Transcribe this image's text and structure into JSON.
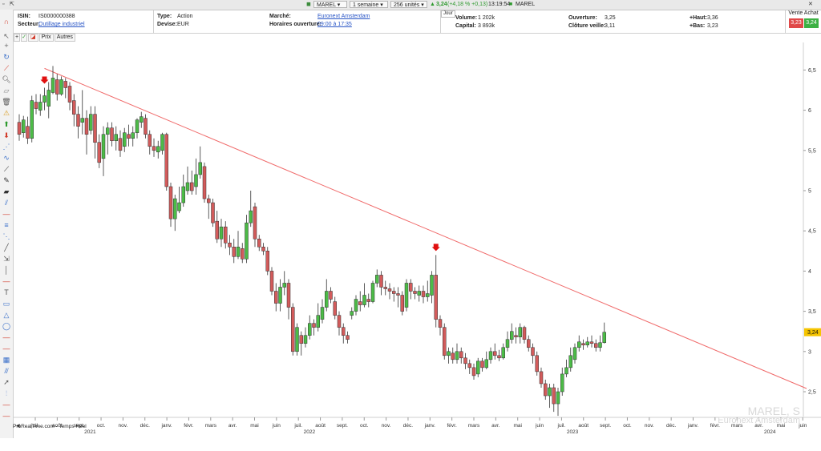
{
  "toolbar_top": {
    "symbol": "MAREL",
    "period": "1 semaine",
    "units": "256 unités",
    "last": "3,24",
    "change": "(+4,18 % +0,13)",
    "time": "13:19:54",
    "name": "MAREL"
  },
  "info": {
    "isin_label": "ISIN:",
    "isin": "IS0000000388",
    "sector_label": "Secteur:",
    "sector": "Outillage industriel",
    "type_label": "Type:",
    "type": "Action",
    "currency_label": "Devise:",
    "currency": "EUR",
    "market_label": "Marché:",
    "market": "Euronext Amsterdam",
    "hours_label": "Horaires ouverture:",
    "hours": "09:00 à 17:35",
    "day_tab": "Jour",
    "volume_label": "Volume:",
    "volume": "1 202k",
    "capital_label": "Capital:",
    "capital": "3 893k",
    "open_label": "Ouverture:",
    "open": "3,25",
    "prevclose_label": "Clôture veille:",
    "prevclose": "3,11",
    "high_label": "+Haut:",
    "high": "3,36",
    "low_label": "+Bas:",
    "low": "3,23",
    "sell_buy": "Vente Achat",
    "sell": "3,23",
    "buy": "3,24"
  },
  "chart_tabs": {
    "prices": "Prix",
    "others": "Autres"
  },
  "footer": {
    "source": "ProRealTime.com - Temps Réel",
    "watermark_name": "MAREL, S",
    "watermark_market": "Euronext Amsterdam"
  },
  "colors": {
    "up": "#4cbb47",
    "down": "#d25b5b",
    "trendline": "#f06a6a",
    "arrow": "#e01010",
    "price_tag": "#f5c400"
  },
  "chart_data": {
    "type": "candlestick",
    "ylim": [
      2.2,
      6.7
    ],
    "yticks": [
      "2,5",
      "3",
      "3,5",
      "4",
      "4,5",
      "5",
      "5,5",
      "6",
      "6,5"
    ],
    "ytick_values": [
      2.5,
      3.0,
      3.5,
      4.0,
      4.5,
      5.0,
      5.5,
      6.0,
      6.5
    ],
    "last_price_label": "3,24",
    "last_price": 3.24,
    "xticks": [
      "juil.",
      "août",
      "sept.",
      "oct.",
      "nov.",
      "déc.",
      "janv.",
      "févr.",
      "mars",
      "avr.",
      "mai",
      "juin",
      "juil.",
      "août",
      "sept.",
      "oct.",
      "nov.",
      "déc.",
      "janv.",
      "févr.",
      "mars",
      "avr.",
      "mai",
      "juin",
      "juil.",
      "août",
      "sept.",
      "oct.",
      "nov.",
      "déc.",
      "janv.",
      "févr.",
      "mars",
      "avr.",
      "mai",
      "juin"
    ],
    "years": [
      {
        "label": "2021",
        "after_tick": 2
      },
      {
        "label": "2022",
        "after_tick": 12
      },
      {
        "label": "2023",
        "after_tick": 24
      },
      {
        "label": "2024",
        "after_tick": 33
      }
    ],
    "trendline": {
      "from": [
        6,
        6.52
      ],
      "to": [
        165,
        2.55
      ]
    },
    "arrows": [
      6,
      99
    ],
    "candles": [
      [
        5.85,
        5.7,
        5.95,
        5.62
      ],
      [
        5.72,
        5.88,
        5.93,
        5.66
      ],
      [
        5.8,
        5.65,
        5.92,
        5.58
      ],
      [
        5.65,
        6.12,
        6.18,
        5.6
      ],
      [
        6.1,
        6.02,
        6.2,
        5.95
      ],
      [
        6.0,
        6.1,
        6.2,
        5.93
      ],
      [
        6.1,
        6.18,
        6.28,
        6.0
      ],
      [
        6.05,
        6.25,
        6.35,
        5.9
      ],
      [
        6.22,
        6.4,
        6.55,
        6.2
      ],
      [
        6.38,
        6.2,
        6.45,
        6.12
      ],
      [
        6.2,
        6.38,
        6.42,
        6.18
      ],
      [
        6.36,
        6.28,
        6.4,
        6.15
      ],
      [
        6.3,
        6.1,
        6.35,
        6.0
      ],
      [
        6.12,
        5.95,
        6.2,
        5.8
      ],
      [
        5.95,
        5.8,
        6.05,
        5.65
      ],
      [
        5.85,
        5.9,
        6.25,
        5.7
      ],
      [
        5.9,
        5.7,
        6.0,
        5.45
      ],
      [
        5.75,
        5.95,
        6.05,
        5.7
      ],
      [
        5.95,
        5.6,
        6.05,
        5.4
      ],
      [
        5.6,
        5.35,
        5.7,
        5.28
      ],
      [
        5.4,
        5.7,
        5.8,
        5.18
      ],
      [
        5.7,
        5.78,
        5.85,
        5.45
      ],
      [
        5.78,
        5.62,
        5.85,
        5.55
      ],
      [
        5.62,
        5.7,
        5.8,
        5.5
      ],
      [
        5.65,
        5.5,
        5.75,
        5.42
      ],
      [
        5.55,
        5.72,
        5.78,
        5.48
      ],
      [
        5.7,
        5.65,
        5.82,
        5.55
      ],
      [
        5.65,
        5.72,
        5.8,
        5.55
      ],
      [
        5.72,
        5.88,
        5.9,
        5.65
      ],
      [
        5.85,
        5.92,
        5.98,
        5.78
      ],
      [
        5.9,
        5.7,
        5.95,
        5.65
      ],
      [
        5.7,
        5.55,
        5.75,
        5.45
      ],
      [
        5.55,
        5.5,
        5.65,
        5.42
      ],
      [
        5.48,
        5.55,
        5.62,
        5.4
      ],
      [
        5.5,
        5.7,
        5.72,
        5.45
      ],
      [
        5.7,
        5.05,
        5.72,
        5.0
      ],
      [
        5.05,
        4.65,
        5.1,
        4.55
      ],
      [
        4.65,
        4.9,
        4.95,
        4.5
      ],
      [
        4.75,
        4.85,
        5.05,
        4.72
      ],
      [
        4.85,
        5.05,
        5.2,
        4.8
      ],
      [
        5.0,
        5.1,
        5.3,
        4.95
      ],
      [
        5.1,
        5.0,
        5.25,
        4.95
      ],
      [
        5.05,
        5.2,
        5.4,
        4.95
      ],
      [
        5.2,
        5.35,
        5.55,
        5.15
      ],
      [
        5.3,
        4.9,
        5.35,
        4.85
      ],
      [
        4.9,
        4.85,
        4.95,
        4.65
      ],
      [
        4.85,
        4.6,
        4.9,
        4.55
      ],
      [
        4.62,
        4.4,
        4.75,
        4.35
      ],
      [
        4.4,
        4.55,
        4.65,
        4.3
      ],
      [
        4.55,
        4.35,
        4.62,
        4.28
      ],
      [
        4.35,
        4.3,
        4.45,
        4.2
      ],
      [
        4.3,
        4.18,
        4.4,
        4.1
      ],
      [
        4.18,
        4.3,
        4.5,
        4.15
      ],
      [
        4.28,
        4.15,
        4.35,
        4.1
      ],
      [
        4.15,
        4.6,
        4.7,
        4.1
      ],
      [
        4.6,
        4.75,
        5.0,
        4.55
      ],
      [
        4.8,
        4.4,
        4.85,
        4.3
      ],
      [
        4.4,
        4.3,
        4.45,
        4.25
      ],
      [
        4.3,
        4.25,
        4.35,
        4.2
      ],
      [
        4.25,
        4.0,
        4.3,
        3.95
      ],
      [
        4.0,
        3.75,
        4.05,
        3.7
      ],
      [
        3.75,
        3.6,
        3.85,
        3.5
      ],
      [
        3.6,
        3.8,
        3.9,
        3.5
      ],
      [
        3.8,
        3.85,
        4.0,
        3.7
      ],
      [
        3.85,
        3.55,
        3.9,
        3.4
      ],
      [
        3.55,
        3.0,
        3.6,
        2.95
      ],
      [
        3.0,
        3.3,
        3.35,
        2.95
      ],
      [
        3.2,
        3.1,
        3.25,
        2.95
      ],
      [
        3.1,
        3.2,
        3.3,
        3.05
      ],
      [
        3.2,
        3.35,
        3.45,
        3.15
      ],
      [
        3.35,
        3.3,
        3.4,
        3.2
      ],
      [
        3.3,
        3.45,
        3.6,
        3.25
      ],
      [
        3.4,
        3.55,
        3.65,
        3.35
      ],
      [
        3.55,
        3.75,
        3.9,
        3.5
      ],
      [
        3.75,
        3.65,
        3.8,
        3.6
      ],
      [
        3.62,
        3.45,
        3.68,
        3.4
      ],
      [
        3.45,
        3.3,
        3.5,
        3.2
      ],
      [
        3.3,
        3.2,
        3.35,
        3.1
      ],
      [
        3.2,
        3.15,
        3.25,
        3.1
      ],
      [
        3.45,
        3.5,
        3.55,
        3.4
      ],
      [
        3.5,
        3.65,
        3.7,
        3.45
      ],
      [
        3.62,
        3.58,
        3.75,
        3.5
      ],
      [
        3.58,
        3.7,
        3.85,
        3.55
      ],
      [
        3.65,
        3.62,
        3.72,
        3.55
      ],
      [
        3.62,
        3.85,
        3.88,
        3.6
      ],
      [
        3.85,
        3.95,
        4.02,
        3.8
      ],
      [
        3.95,
        3.8,
        4.0,
        3.7
      ],
      [
        3.8,
        3.78,
        3.88,
        3.7
      ],
      [
        3.78,
        3.75,
        3.85,
        3.65
      ],
      [
        3.75,
        3.72,
        3.8,
        3.62
      ],
      [
        3.72,
        3.7,
        3.8,
        3.55
      ],
      [
        3.7,
        3.5,
        3.75,
        3.45
      ],
      [
        3.55,
        3.85,
        3.9,
        3.5
      ],
      [
        3.85,
        3.75,
        3.9,
        3.65
      ],
      [
        3.75,
        3.72,
        3.8,
        3.65
      ],
      [
        3.7,
        3.75,
        3.82,
        3.62
      ],
      [
        3.75,
        3.68,
        3.82,
        3.6
      ],
      [
        3.68,
        3.72,
        3.88,
        3.62
      ],
      [
        3.7,
        3.95,
        4.0,
        3.6
      ],
      [
        3.95,
        3.4,
        4.2,
        3.3
      ],
      [
        3.4,
        3.3,
        3.45,
        3.2
      ],
      [
        3.3,
        2.95,
        3.35,
        2.9
      ],
      [
        2.95,
        3.0,
        3.05,
        2.85
      ],
      [
        2.98,
        2.9,
        3.05,
        2.85
      ],
      [
        2.9,
        3.0,
        3.1,
        2.85
      ],
      [
        3.0,
        2.92,
        3.05,
        2.85
      ],
      [
        2.92,
        2.85,
        2.98,
        2.78
      ],
      [
        2.85,
        2.8,
        2.9,
        2.72
      ],
      [
        2.8,
        2.7,
        2.85,
        2.65
      ],
      [
        2.72,
        2.88,
        2.92,
        2.68
      ],
      [
        2.88,
        2.8,
        2.92,
        2.75
      ],
      [
        2.8,
        2.9,
        3.0,
        2.78
      ],
      [
        2.9,
        3.0,
        3.05,
        2.85
      ],
      [
        3.0,
        2.95,
        3.1,
        2.9
      ],
      [
        2.95,
        2.92,
        3.02,
        2.88
      ],
      [
        2.92,
        3.05,
        3.1,
        2.9
      ],
      [
        3.05,
        3.15,
        3.25,
        3.0
      ],
      [
        3.15,
        3.25,
        3.35,
        3.1
      ],
      [
        3.2,
        3.18,
        3.3,
        3.1
      ],
      [
        3.18,
        3.3,
        3.35,
        3.1
      ],
      [
        3.3,
        3.15,
        3.32,
        3.1
      ],
      [
        3.15,
        3.05,
        3.2,
        3.0
      ],
      [
        3.05,
        2.95,
        3.1,
        2.85
      ],
      [
        2.95,
        2.75,
        3.0,
        2.7
      ],
      [
        2.75,
        2.6,
        2.8,
        2.55
      ],
      [
        2.6,
        2.45,
        2.65,
        2.4
      ],
      [
        2.45,
        2.55,
        2.6,
        2.3
      ],
      [
        2.55,
        2.35,
        2.6,
        2.25
      ],
      [
        2.35,
        2.5,
        2.55,
        2.2
      ],
      [
        2.5,
        2.72,
        2.8,
        2.45
      ],
      [
        2.72,
        2.8,
        2.9,
        2.68
      ],
      [
        2.8,
        2.95,
        3.05,
        2.75
      ],
      [
        2.9,
        3.05,
        3.1,
        2.85
      ],
      [
        3.05,
        3.12,
        3.2,
        3.0
      ],
      [
        3.1,
        3.08,
        3.15,
        3.02
      ],
      [
        3.08,
        3.12,
        3.18,
        3.05
      ],
      [
        3.12,
        3.1,
        3.2,
        3.05
      ],
      [
        3.1,
        3.05,
        3.15,
        3.0
      ],
      [
        3.05,
        3.11,
        3.2,
        3.0
      ],
      [
        3.11,
        3.24,
        3.36,
        3.1
      ]
    ]
  }
}
